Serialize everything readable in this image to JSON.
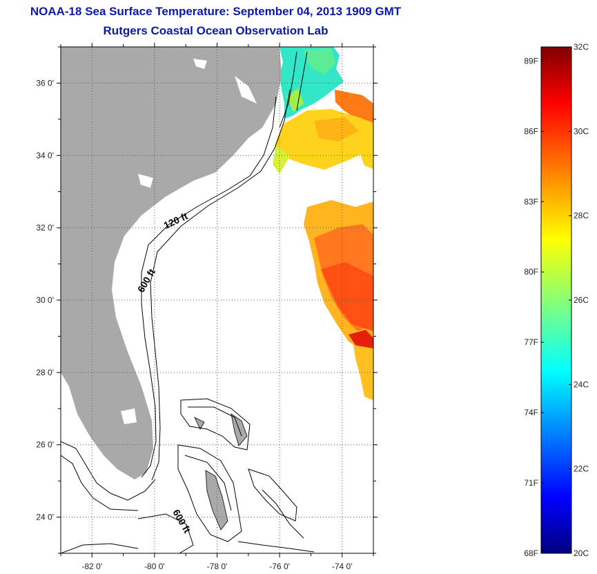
{
  "title": {
    "line1": "NOAA-18 Sea Surface Temperature:  September 04, 2013 1909 GMT",
    "line2": "Rutgers Coastal Ocean Observation Lab"
  },
  "map": {
    "lon_range": [
      -83,
      -73
    ],
    "lat_range": [
      23,
      37
    ],
    "lat_ticks": [
      {
        "value": 24,
        "label": "24 0'"
      },
      {
        "value": 26,
        "label": "26 0'"
      },
      {
        "value": 28,
        "label": "28 0'"
      },
      {
        "value": 30,
        "label": "30 0'"
      },
      {
        "value": 32,
        "label": "32 0'"
      },
      {
        "value": 34,
        "label": "34 0'"
      },
      {
        "value": 36,
        "label": "36 0'"
      }
    ],
    "lon_ticks": [
      {
        "value": -82,
        "label": "-82 0'"
      },
      {
        "value": -80,
        "label": "-80 0'"
      },
      {
        "value": -78,
        "label": "-78 0'"
      },
      {
        "value": -76,
        "label": "-76 0'"
      },
      {
        "value": -74,
        "label": "-74 0'"
      }
    ],
    "contour_labels": [
      "120 ft",
      "600 ft",
      "600 ft"
    ],
    "colors": {
      "land": "#a9a9a9",
      "grid": "#555555",
      "contour": "#000000"
    }
  },
  "colorbar": {
    "min_c": 20,
    "max_c": 32,
    "celsius_labels": [
      "32C",
      "30C",
      "28C",
      "26C",
      "24C",
      "22C",
      "20C"
    ],
    "fahrenheit_labels": [
      "89F",
      "86F",
      "83F",
      "80F",
      "77F",
      "74F",
      "71F",
      "68F"
    ]
  }
}
